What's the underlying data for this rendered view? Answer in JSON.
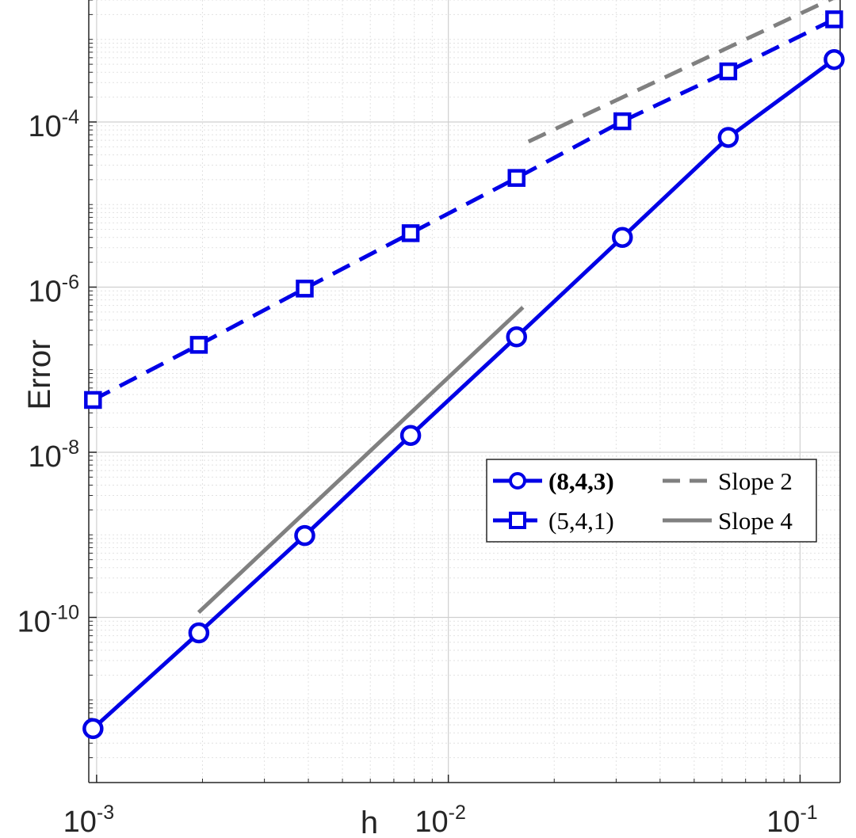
{
  "chart_data": {
    "type": "line",
    "xscale": "log",
    "yscale": "log",
    "xlabel": "h",
    "ylabel": "Error",
    "xlim": [
      0.00095,
      0.13
    ],
    "ylim": [
      1e-12,
      0.003
    ],
    "grid": true,
    "minor_grid": true,
    "legend_position": "center-right",
    "x_ticks": [
      {
        "value": 0.001,
        "base": "10",
        "exp": "-3"
      },
      {
        "value": 0.01,
        "base": "10",
        "exp": "-2"
      },
      {
        "value": 0.1,
        "base": "10",
        "exp": "-1"
      }
    ],
    "y_ticks": [
      {
        "value": 1e-10,
        "base": "10",
        "exp": "-10"
      },
      {
        "value": 1e-08,
        "base": "10",
        "exp": "-8"
      },
      {
        "value": 1e-06,
        "base": "10",
        "exp": "-6"
      },
      {
        "value": 0.0001,
        "base": "10",
        "exp": "-4"
      }
    ],
    "series": [
      {
        "name": "(8,4,3)",
        "color": "#0000e6",
        "line_style": "solid",
        "marker": "circle",
        "bold_label": true,
        "x": [
          0.0009766,
          0.001953,
          0.003906,
          0.007813,
          0.01563,
          0.03125,
          0.0625,
          0.125
        ],
        "y": [
          4.5e-12,
          6.5e-11,
          9.8e-10,
          1.6e-08,
          2.5e-07,
          4e-06,
          6.5e-05,
          0.00057
        ]
      },
      {
        "name": "(5,4,1)",
        "color": "#0000e6",
        "line_style": "dashed",
        "marker": "square",
        "bold_label": false,
        "x": [
          0.0009766,
          0.001953,
          0.003906,
          0.007813,
          0.01563,
          0.03125,
          0.0625,
          0.125
        ],
        "y": [
          4.3e-08,
          2e-07,
          9.6e-07,
          4.5e-06,
          2.1e-05,
          0.000102,
          0.00041,
          0.00175
        ]
      },
      {
        "name": "Slope 2",
        "color": "#808080",
        "line_style": "dashed",
        "marker": "none",
        "bold_label": false,
        "x": [
          0.0169,
          0.125
        ],
        "y": [
          5.8e-05,
          0.0032
        ]
      },
      {
        "name": "Slope 4",
        "color": "#808080",
        "line_style": "solid",
        "marker": "none",
        "bold_label": false,
        "x": [
          0.00195,
          0.0163
        ],
        "y": [
          1.15e-10,
          5.7e-07
        ]
      }
    ]
  }
}
